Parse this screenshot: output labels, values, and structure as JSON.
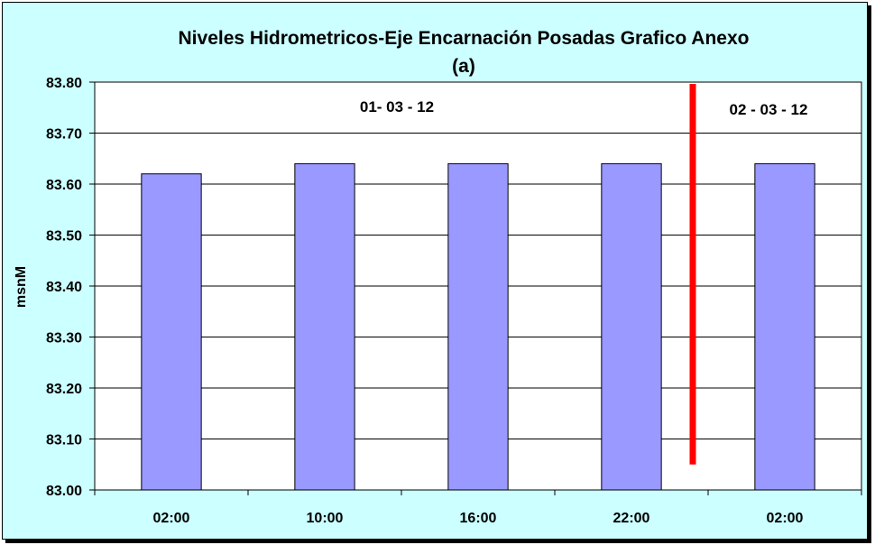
{
  "chart_data": {
    "type": "bar",
    "title": "Niveles Hidrometricos-Eje Encarnación Posadas Grafico Anexo",
    "subtitle": "(a)",
    "xlabel": "",
    "ylabel": "msnM",
    "categories": [
      "02:00",
      "10:00",
      "16:00",
      "22:00",
      "02:00"
    ],
    "values": [
      83.62,
      83.64,
      83.64,
      83.64,
      83.64
    ],
    "ylim": [
      83.0,
      83.8
    ],
    "yticks": [
      "83.00",
      "83.10",
      "83.20",
      "83.30",
      "83.40",
      "83.50",
      "83.60",
      "83.70",
      "83.80"
    ],
    "grid": true,
    "annotations": [
      {
        "text": "01- 03 - 12"
      },
      {
        "text": "02 - 03 - 12"
      }
    ],
    "separator": {
      "position_between_categories": [
        3,
        4
      ],
      "y_from": 83.05,
      "y_to": 83.8,
      "color": "#ff0000"
    },
    "colors": {
      "bar": "#9999ff",
      "bar_border": "#000000",
      "plot_background": "#ffffff",
      "chart_background": "#ccffff",
      "separator": "#ff0000"
    }
  }
}
